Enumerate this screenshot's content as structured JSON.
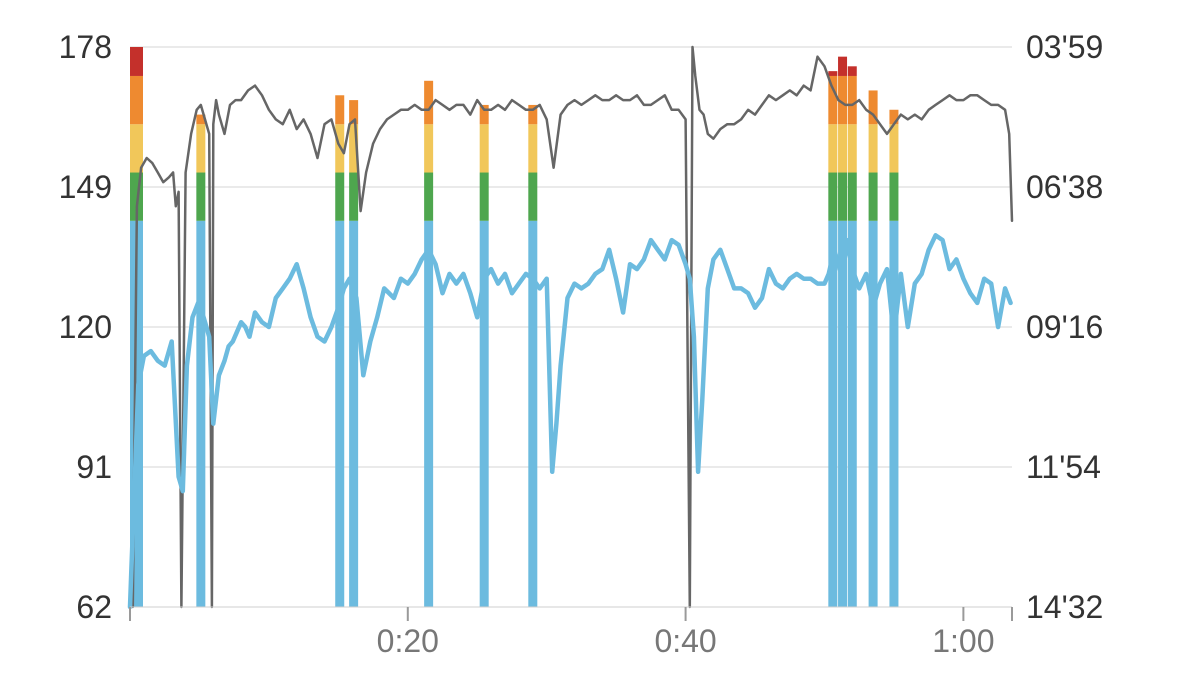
{
  "chart_data": {
    "type": "line",
    "x_unit": "minutes",
    "xlim": [
      0,
      63.5
    ],
    "x_ticks": [
      {
        "value": 0,
        "label": ""
      },
      {
        "value": 20,
        "label": "0:20"
      },
      {
        "value": 40,
        "label": "0:40"
      },
      {
        "value": 60,
        "label": "1:00"
      }
    ],
    "y_left": {
      "lim": [
        62,
        178
      ],
      "ticks": [
        {
          "value": 62,
          "label": "62"
        },
        {
          "value": 91,
          "label": "91"
        },
        {
          "value": 120,
          "label": "120"
        },
        {
          "value": 149,
          "label": "149"
        },
        {
          "value": 178,
          "label": "178"
        }
      ]
    },
    "y_right": {
      "ticks": [
        "14'32",
        "11'54",
        "09'16",
        "06'38",
        "03'59"
      ]
    },
    "grid": true,
    "zones": [
      {
        "from": 62,
        "to": 142,
        "color": "#6cbbdf"
      },
      {
        "from": 142,
        "to": 152,
        "color": "#4ea64e"
      },
      {
        "from": 152,
        "to": 162,
        "color": "#f1c75a"
      },
      {
        "from": 162,
        "to": 172,
        "color": "#ee8a30"
      },
      {
        "from": 172,
        "to": 178,
        "color": "#c4302b"
      }
    ],
    "series": [
      {
        "color": "#6cbbdf",
        "x": [
          0,
          0.1,
          0.3,
          0.6,
          1.0,
          1.5,
          2.0,
          2.5,
          3.0,
          3.5,
          3.8,
          4.1,
          4.5,
          4.9,
          5.3,
          5.7,
          6.0,
          6.4,
          6.8,
          7.1,
          7.4,
          7.7,
          8.0,
          8.3,
          8.6,
          9.0,
          9.5,
          10.0,
          10.5,
          11.0,
          11.5,
          12.0,
          12.5,
          13.0,
          13.5,
          14.0,
          14.5,
          15.0,
          15.4,
          15.8,
          16.3,
          16.8,
          17.3,
          17.8,
          18.3,
          19.0,
          19.5,
          20.0,
          20.5,
          21.0,
          21.5,
          22.0,
          22.5,
          23.0,
          23.5,
          24.0,
          24.5,
          25.0,
          25.5,
          26.0,
          26.5,
          27.0,
          27.5,
          28.0,
          28.5,
          29.0,
          29.5,
          30.0,
          30.4,
          30.7,
          31.0,
          31.5,
          32.0,
          32.5,
          33.0,
          33.5,
          34.0,
          34.5,
          35.0,
          35.5,
          36.0,
          36.5,
          37.0,
          37.5,
          38.0,
          38.5,
          39.0,
          39.5,
          40.0,
          40.3,
          40.6,
          40.9,
          41.2,
          41.6,
          42.0,
          42.5,
          43.0,
          43.5,
          44.0,
          44.5,
          45.0,
          45.5,
          46.0,
          46.5,
          47.0,
          47.5,
          48.0,
          48.5,
          49.0,
          49.5,
          50.0,
          50.3,
          50.7,
          51.0,
          51.3,
          51.6,
          52.0,
          52.5,
          53.0,
          53.5,
          54.0,
          54.5,
          55.0,
          55.5,
          56.0,
          56.5,
          57.0,
          57.5,
          58.0,
          58.5,
          59.0,
          59.5,
          60.0,
          60.5,
          61.0,
          61.5,
          62.0,
          62.5,
          63.0,
          63.4
        ],
        "values": [
          62,
          70,
          85,
          108,
          114,
          115,
          113,
          112,
          117,
          89,
          86,
          112,
          122,
          125,
          122,
          118,
          100,
          110,
          113,
          116,
          117,
          119,
          121,
          120,
          118,
          123,
          121,
          120,
          126,
          128,
          130,
          133,
          128,
          122,
          118,
          117,
          120,
          124,
          128,
          130,
          126,
          110,
          117,
          122,
          128,
          126,
          130,
          129,
          131,
          134,
          136,
          133,
          127,
          131,
          129,
          131,
          127,
          122,
          130,
          132,
          129,
          131,
          127,
          129,
          131,
          130,
          128,
          130,
          90,
          100,
          112,
          126,
          129,
          128,
          129,
          131,
          132,
          136,
          130,
          123,
          133,
          132,
          134,
          138,
          136,
          134,
          138,
          137,
          133,
          130,
          118,
          90,
          105,
          128,
          134,
          136,
          132,
          128,
          128,
          127,
          124,
          126,
          132,
          129,
          128,
          130,
          131,
          130,
          130,
          129,
          129,
          131,
          136,
          133,
          130,
          138,
          132,
          128,
          131,
          124,
          129,
          132,
          118,
          131,
          120,
          129,
          131,
          136,
          139,
          138,
          132,
          134,
          130,
          127,
          125,
          130,
          129,
          120,
          128,
          125
        ],
        "spikes_to_zone": [
          {
            "x": 0.0,
            "value": 178
          },
          {
            "x": 5.1,
            "value": 164
          },
          {
            "x": 15.1,
            "value": 168
          },
          {
            "x": 16.1,
            "value": 167
          },
          {
            "x": 21.5,
            "value": 171
          },
          {
            "x": 25.5,
            "value": 166
          },
          {
            "x": 29.0,
            "value": 166
          },
          {
            "x": 50.6,
            "value": 173
          },
          {
            "x": 51.3,
            "value": 176
          },
          {
            "x": 52.0,
            "value": 174
          },
          {
            "x": 53.5,
            "value": 169
          },
          {
            "x": 55.0,
            "value": 165
          }
        ]
      },
      {
        "color": "#666666",
        "x": [
          0.2,
          0.5,
          0.8,
          1.2,
          1.6,
          2.0,
          2.4,
          2.8,
          3.1,
          3.3,
          3.5,
          3.7,
          4.0,
          4.4,
          4.8,
          5.1,
          5.4,
          5.7,
          5.9,
          6.0,
          6.2,
          6.4,
          6.8,
          7.2,
          7.6,
          8.0,
          8.5,
          9.0,
          9.5,
          10.0,
          10.5,
          11.0,
          11.5,
          12.0,
          12.5,
          13.0,
          13.5,
          14.0,
          14.5,
          15.0,
          15.4,
          15.8,
          16.2,
          16.6,
          17.0,
          17.5,
          18.0,
          18.5,
          19.0,
          19.5,
          20.0,
          20.5,
          21.0,
          21.5,
          22.0,
          22.5,
          23.0,
          23.5,
          24.0,
          24.5,
          25.0,
          25.5,
          26.0,
          26.5,
          27.0,
          27.5,
          28.0,
          28.5,
          29.0,
          29.5,
          30.0,
          30.5,
          31.0,
          31.5,
          32.0,
          32.5,
          33.0,
          33.5,
          34.0,
          34.5,
          35.0,
          35.5,
          36.0,
          36.5,
          37.0,
          37.5,
          38.0,
          38.5,
          39.0,
          39.5,
          40.0,
          40.3,
          40.5,
          40.7,
          41.0,
          41.3,
          41.6,
          42.0,
          42.5,
          43.0,
          43.5,
          44.0,
          44.5,
          45.0,
          45.5,
          46.0,
          46.5,
          47.0,
          47.5,
          48.0,
          48.5,
          49.0,
          49.5,
          50.0,
          50.5,
          51.0,
          51.5,
          52.0,
          52.5,
          53.0,
          53.5,
          54.0,
          54.5,
          55.0,
          55.5,
          56.0,
          56.5,
          57.0,
          57.5,
          58.0,
          58.5,
          59.0,
          59.5,
          60.0,
          60.5,
          61.0,
          61.5,
          62.0,
          62.5,
          63.0,
          63.3,
          63.5
        ],
        "values": [
          60,
          145,
          153,
          155,
          154,
          152,
          150,
          151,
          152,
          145,
          148,
          60,
          152,
          160,
          165,
          166,
          163,
          160,
          60,
          162,
          167,
          164,
          160,
          166,
          167,
          167,
          169,
          170,
          168,
          165,
          163,
          162,
          165,
          161,
          163,
          160,
          155,
          162,
          163,
          158,
          156,
          162,
          163,
          144,
          152,
          158,
          161,
          163,
          164,
          165,
          165,
          166,
          165,
          165,
          167,
          166,
          165,
          166,
          166,
          164,
          167,
          165,
          165,
          166,
          165,
          167,
          166,
          165,
          165,
          166,
          163,
          153,
          164,
          166,
          167,
          166,
          167,
          168,
          167,
          167,
          168,
          167,
          167,
          168,
          166,
          166,
          167,
          168,
          165,
          165,
          163,
          60,
          178,
          172,
          165,
          164,
          160,
          159,
          161,
          162,
          162,
          163,
          165,
          164,
          166,
          168,
          167,
          168,
          169,
          168,
          170,
          169,
          176,
          174,
          170,
          167,
          166,
          166,
          167,
          165,
          164,
          162,
          160,
          162,
          164,
          163,
          164,
          163,
          165,
          166,
          167,
          168,
          167,
          167,
          168,
          168,
          167,
          166,
          166,
          165,
          160,
          142
        ]
      }
    ]
  }
}
